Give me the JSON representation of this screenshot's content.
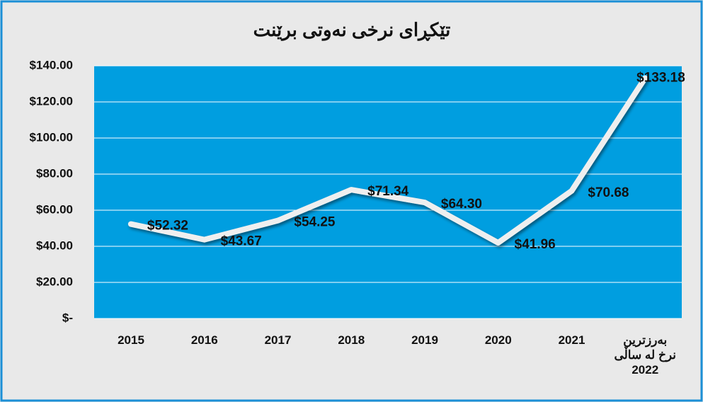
{
  "chart_data": {
    "type": "line",
    "title": "تێکڕای نرخی نەوتی برێنت",
    "categories": [
      "2015",
      "2016",
      "2017",
      "2018",
      "2019",
      "2020",
      "2021",
      "بەرزترین\nنرخ لە ساڵی\n2022"
    ],
    "series": [
      {
        "name": "Brent",
        "color": "#efefef",
        "values": [
          52.32,
          43.67,
          54.25,
          71.34,
          64.3,
          41.96,
          70.68,
          133.18
        ],
        "value_labels": [
          "$52.32",
          "$43.67",
          "$54.25",
          "$71.34",
          "$64.30",
          "$41.96",
          "$70.68",
          "$133.18"
        ]
      }
    ],
    "ylim": [
      0,
      140
    ],
    "yticks": [
      {
        "value": 0,
        "label": "$-"
      },
      {
        "value": 20,
        "label": "$20.00"
      },
      {
        "value": 40,
        "label": "$40.00"
      },
      {
        "value": 60,
        "label": "$60.00"
      },
      {
        "value": 80,
        "label": "$80.00"
      },
      {
        "value": 100,
        "label": "$100.00"
      },
      {
        "value": 120,
        "label": "$120.00"
      },
      {
        "value": 140,
        "label": "$140.00"
      }
    ],
    "grid": true,
    "plot_color": "#009ee0"
  }
}
